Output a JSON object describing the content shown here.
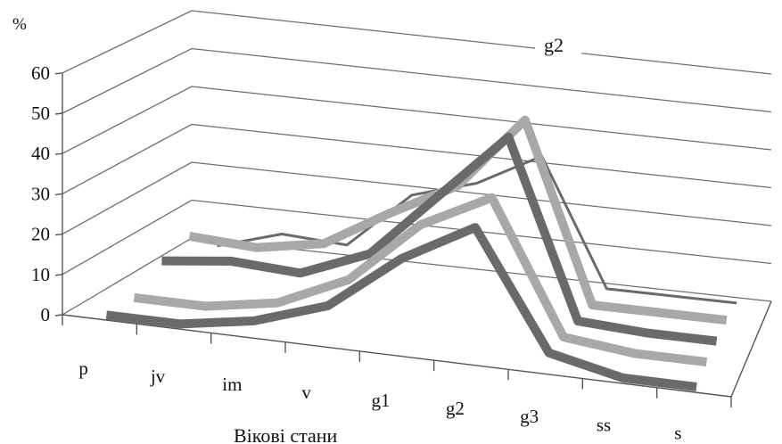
{
  "chart_data": {
    "type": "line",
    "subtype": "3d-line",
    "unit_label": "%",
    "xlabel": "Вікові стани",
    "ylabel": "",
    "ylim": [
      0,
      60
    ],
    "yticks": [
      "0",
      "10",
      "20",
      "30",
      "40",
      "50",
      "60"
    ],
    "categories": [
      "p",
      "jv",
      "im",
      "v",
      "g1",
      "g2",
      "g3",
      "ss",
      "s"
    ],
    "grid": true,
    "series": [
      {
        "name": "",
        "color": "#6a6a6a",
        "values": [
          0,
          0,
          3,
          9,
          23,
          33,
          4,
          0,
          0
        ]
      },
      {
        "name": "",
        "color": "#a8a8a8",
        "values": [
          0,
          0,
          3,
          11,
          27,
          36,
          3,
          1,
          1
        ]
      },
      {
        "name": "",
        "color": "#6a6a6a",
        "values": [
          5,
          7,
          6,
          13,
          30,
          47,
          2,
          1,
          1
        ]
      },
      {
        "name": "",
        "color": "#a8a8a8",
        "values": [
          7,
          6,
          9,
          19,
          28,
          47,
          1,
          1,
          1
        ]
      },
      {
        "name": "g2",
        "color": "#6a6a6a",
        "values": [
          0,
          5,
          4,
          19,
          24,
          33,
          0,
          0,
          0
        ]
      }
    ]
  }
}
